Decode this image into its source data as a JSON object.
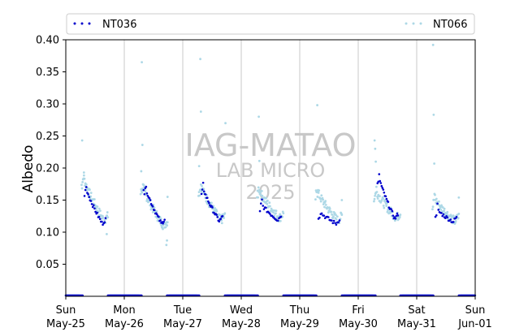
{
  "chart_data": {
    "type": "scatter",
    "ylabel": "Albedo",
    "xlabel": "",
    "ylim": [
      0.0,
      0.4
    ],
    "xlim": [
      0,
      7
    ],
    "yticks": [
      0.05,
      0.1,
      0.15,
      0.2,
      0.25,
      0.3,
      0.35,
      0.4
    ],
    "xticks": [
      {
        "pos": 0,
        "day": "Sun",
        "date": "May-25"
      },
      {
        "pos": 1,
        "day": "Mon",
        "date": "May-26"
      },
      {
        "pos": 2,
        "day": "Tue",
        "date": "May-27"
      },
      {
        "pos": 3,
        "day": "Wed",
        "date": "May-28"
      },
      {
        "pos": 4,
        "day": "Thu",
        "date": "May-29"
      },
      {
        "pos": 5,
        "day": "Fri",
        "date": "May-30"
      },
      {
        "pos": 6,
        "day": "Sat",
        "date": "May-31"
      },
      {
        "pos": 7,
        "day": "Sun",
        "date": "Jun-01"
      }
    ],
    "grid": "vertical",
    "legend_position": "top",
    "watermark": [
      "IAG-MATAO",
      "LAB MICRO",
      "2025"
    ],
    "series": [
      {
        "name": "NT036",
        "color": "#0000cc",
        "days": [
          {
            "start": 0.32,
            "end": 0.68,
            "peak": 0.168,
            "min": 0.113,
            "n": 24
          },
          {
            "start": 1.33,
            "end": 1.69,
            "peak": 0.171,
            "min": 0.113,
            "n": 26
          },
          {
            "start": 2.32,
            "end": 2.68,
            "peak": 0.168,
            "min": 0.117,
            "n": 26
          },
          {
            "start": 3.32,
            "end": 3.68,
            "peak": 0.143,
            "min": 0.119,
            "n": 22
          },
          {
            "start": 4.32,
            "end": 4.68,
            "peak": 0.131,
            "min": 0.113,
            "n": 20
          },
          {
            "start": 5.33,
            "end": 5.68,
            "peak": 0.184,
            "min": 0.121,
            "n": 26
          },
          {
            "start": 6.32,
            "end": 6.68,
            "peak": 0.135,
            "min": 0.116,
            "n": 22
          }
        ]
      },
      {
        "name": "NT066",
        "color": "#add8e6",
        "days": [
          {
            "start": 0.27,
            "end": 0.72,
            "peak": 0.183,
            "min": 0.118,
            "n": 56,
            "outliers": [
              [
                0.28,
                0.243
              ],
              [
                0.31,
                0.193
              ],
              [
                0.7,
                0.097
              ]
            ]
          },
          {
            "start": 1.28,
            "end": 1.74,
            "peak": 0.17,
            "min": 0.11,
            "n": 58,
            "outliers": [
              [
                1.3,
                0.365
              ],
              [
                1.31,
                0.236
              ],
              [
                1.29,
                0.195
              ],
              [
                1.72,
                0.08
              ],
              [
                1.73,
                0.087
              ],
              [
                1.74,
                0.155
              ]
            ]
          },
          {
            "start": 2.27,
            "end": 2.72,
            "peak": 0.172,
            "min": 0.118,
            "n": 56,
            "outliers": [
              [
                2.3,
                0.37
              ],
              [
                2.31,
                0.288
              ],
              [
                2.28,
                0.203
              ],
              [
                2.73,
                0.27
              ]
            ]
          },
          {
            "start": 3.27,
            "end": 3.72,
            "peak": 0.165,
            "min": 0.122,
            "n": 56,
            "outliers": [
              [
                3.3,
                0.28
              ],
              [
                3.31,
                0.211
              ]
            ]
          },
          {
            "start": 4.27,
            "end": 4.72,
            "peak": 0.162,
            "min": 0.118,
            "n": 54,
            "outliers": [
              [
                4.3,
                0.298
              ],
              [
                4.31,
                0.163
              ],
              [
                4.72,
                0.15
              ]
            ]
          },
          {
            "start": 5.27,
            "end": 5.72,
            "peak": 0.164,
            "min": 0.122,
            "n": 56,
            "outliers": [
              [
                5.28,
                0.243
              ],
              [
                5.29,
                0.23
              ],
              [
                5.3,
                0.21
              ]
            ]
          },
          {
            "start": 6.27,
            "end": 6.72,
            "peak": 0.152,
            "min": 0.117,
            "n": 54,
            "outliers": [
              [
                6.28,
                0.392
              ],
              [
                6.29,
                0.283
              ],
              [
                6.3,
                0.207
              ],
              [
                6.72,
                0.154
              ]
            ]
          }
        ]
      }
    ],
    "night_baseline": 0.0
  }
}
